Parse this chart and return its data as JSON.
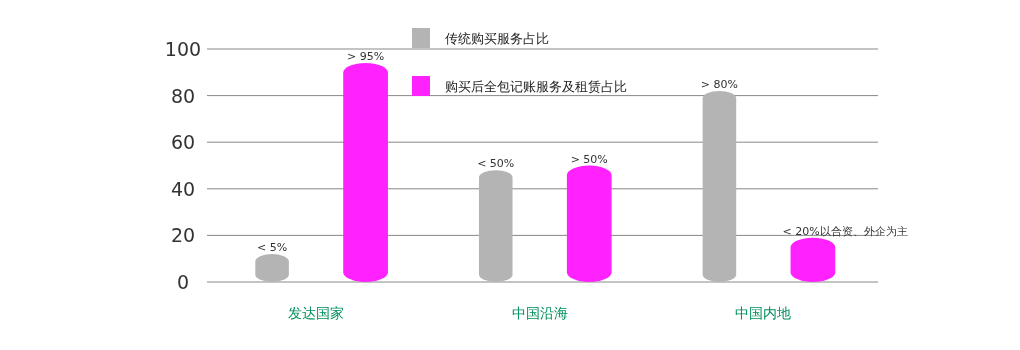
{
  "chart_data": {
    "type": "bar",
    "categories": [
      "发达国家",
      "中国沿海",
      "中国内地"
    ],
    "series": [
      {
        "name": "传统购买服务占比",
        "color": "#b4b4b4",
        "values": [
          12,
          48,
          82
        ],
        "value_labels": [
          "< 5%",
          "< 50%",
          "> 80%"
        ]
      },
      {
        "name": "购买后全包记账服务及租赁占比",
        "color": "#ff22ff",
        "values": [
          94,
          50,
          19
        ],
        "value_labels": [
          "> 95%",
          "> 50%",
          "< 20%以合资、外企为主"
        ]
      }
    ],
    "ylim": [
      0,
      100
    ],
    "yticks": [
      0,
      20,
      40,
      60,
      80,
      100
    ],
    "grid": "y",
    "legend": "top"
  }
}
